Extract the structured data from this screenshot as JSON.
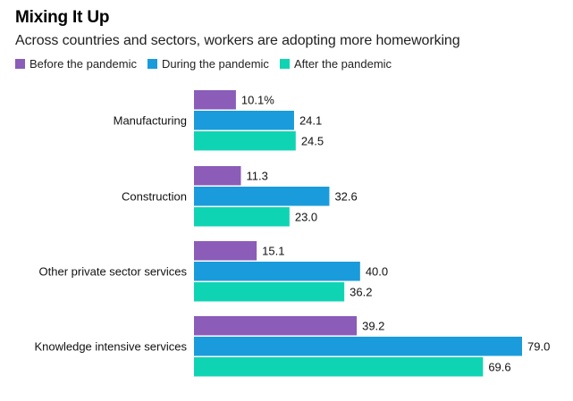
{
  "chart_data": {
    "type": "bar",
    "orientation": "horizontal",
    "title": "Mixing It Up",
    "subtitle": "Across countries and sectors, workers are adopting more homeworking",
    "categories": [
      "Manufacturing",
      "Construction",
      "Other private sector services",
      "Knowledge intensive services"
    ],
    "series": [
      {
        "name": "Before the pandemic",
        "color": "#8b5cb8",
        "values": [
          10.1,
          11.3,
          15.1,
          39.2
        ],
        "labels": [
          "10.1%",
          "11.3",
          "15.1",
          "39.2"
        ]
      },
      {
        "name": "During the pandemic",
        "color": "#1a9bdb",
        "values": [
          24.1,
          32.6,
          40.0,
          79.0
        ],
        "labels": [
          "24.1",
          "32.6",
          "40.0",
          "79.0"
        ]
      },
      {
        "name": "After the pandemic",
        "color": "#0fd4b4",
        "values": [
          24.5,
          23.0,
          36.2,
          69.6
        ],
        "labels": [
          "24.5",
          "23.0",
          "36.2",
          "69.6"
        ]
      }
    ],
    "xlim": [
      0,
      79.0
    ],
    "legend_position": "top-left",
    "grid": false
  }
}
